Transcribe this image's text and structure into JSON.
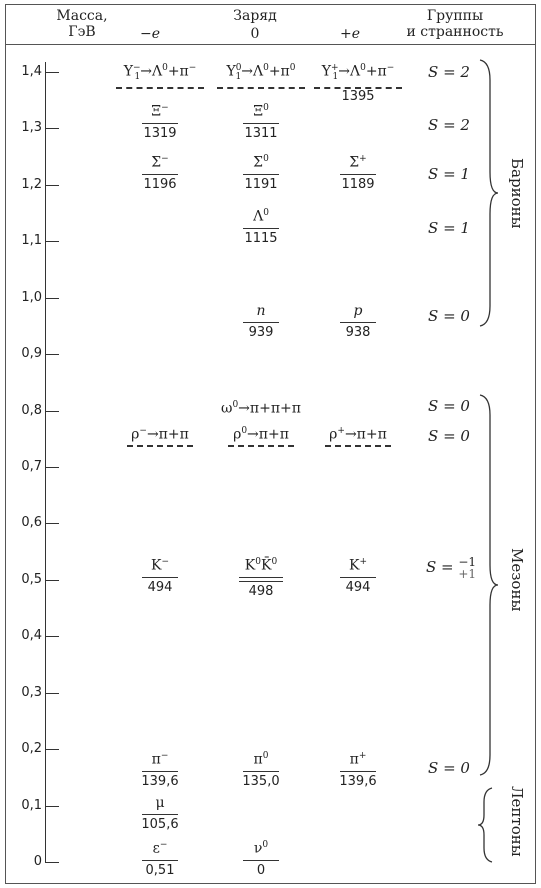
{
  "header": {
    "mass": "Масса,\nГэВ",
    "charge": "Заряд",
    "neg": "−e",
    "zero": "0",
    "pos": "+e",
    "groups": "Группы\nи странность"
  },
  "axis": [
    "1,4",
    "1,3",
    "1,2",
    "1,1",
    "1,0",
    "0,9",
    "0,8",
    "0,7",
    "0,6",
    "0,5",
    "0,4",
    "0,3",
    "0,2",
    "0,1",
    "0"
  ],
  "chart_data": {
    "type": "table",
    "ylabel": "Масса, ГэВ",
    "ylim": [
      0,
      1.4
    ],
    "columns": [
      "−e",
      "0",
      "+e"
    ],
    "particles": [
      {
        "neg": "Y1−→Λ0+π−",
        "zero": "Y10→Λ0+π0",
        "pos": "Y1+→Λ0+π−",
        "pos_mass": "1395"
      },
      {
        "neg": "Ξ−",
        "neg_mass": "1319",
        "zero": "Ξ0",
        "zero_mass": "1311"
      },
      {
        "neg": "Σ−",
        "neg_mass": "1196",
        "zero": "Σ0",
        "zero_mass": "1191",
        "pos": "Σ+",
        "pos_mass": "1189"
      },
      {
        "zero": "Λ0",
        "zero_mass": "1115"
      },
      {
        "zero": "n",
        "zero_mass": "939",
        "pos": "p",
        "pos_mass": "938"
      },
      {
        "zero": "ω0→π+π+π"
      },
      {
        "neg": "ρ−→π+π",
        "zero": "ρ0→π+π",
        "pos": "ρ+→π+π"
      },
      {
        "neg": "K−",
        "neg_mass": "494",
        "zero": "K0K̄0",
        "zero_mass": "498",
        "pos": "K+",
        "pos_mass": "494"
      },
      {
        "neg": "π−",
        "neg_mass": "139,6",
        "zero": "π0",
        "zero_mass": "135,0",
        "pos": "π+",
        "pos_mass": "139,6"
      },
      {
        "neg": "μ",
        "neg_mass": "105,6"
      },
      {
        "neg": "ε",
        "neg_mass": "0,51",
        "zero": "ν0",
        "zero_mass": "0"
      }
    ],
    "strangeness": [
      "S = 2",
      "S = 2",
      "S = 1",
      "S = 1",
      "S = 0",
      "S = 0",
      "S = 0",
      "S = −1 / +1",
      "S = 0"
    ],
    "groups": [
      "Барионы",
      "Мезоны",
      "Лептоны"
    ]
  },
  "cells": {
    "y_neg": {
      "base": "Y",
      "sub": "1",
      "sup": "−",
      "rest": "→Λ",
      "rsup": "0",
      "tail": "+π",
      "tsup": "−"
    },
    "y_zero": {
      "base": "Y",
      "sub": "1",
      "sup": "0",
      "rest": "→Λ",
      "rsup": "0",
      "tail": "+π",
      "tsup": "0"
    },
    "y_pos": {
      "base": "Y",
      "sub": "1",
      "sup": "+",
      "rest": "→Λ",
      "rsup": "0",
      "tail": "+π",
      "tsup": "−",
      "mass": "1395"
    },
    "xi_neg": {
      "base": "Ξ",
      "sup": "−",
      "mass": "1319"
    },
    "xi_zero": {
      "base": "Ξ",
      "sup": "0",
      "mass": "1311"
    },
    "sigma_neg": {
      "base": "Σ",
      "sup": "−",
      "mass": "1196"
    },
    "sigma_zero": {
      "base": "Σ",
      "sup": "0",
      "mass": "1191"
    },
    "sigma_pos": {
      "base": "Σ",
      "sup": "+",
      "mass": "1189"
    },
    "lambda_zero": {
      "base": "Λ",
      "sup": "0",
      "mass": "1115"
    },
    "n": {
      "base": "n",
      "mass": "939"
    },
    "p": {
      "base": "p",
      "mass": "938"
    },
    "omega": {
      "base": "ω",
      "sup": "0",
      "rest": "→π+π+π"
    },
    "rho_neg": {
      "base": "ρ",
      "sup": "−",
      "rest": "→π+π"
    },
    "rho_zero": {
      "base": "ρ",
      "sup": "0",
      "rest": "→π+π"
    },
    "rho_pos": {
      "base": "ρ",
      "sup": "+",
      "rest": "→π+π"
    },
    "k_neg": {
      "base": "K",
      "sup": "−",
      "mass": "494"
    },
    "k_zero": {
      "base": "K",
      "sup": "0",
      "base2": "K̄",
      "sup2": "0",
      "mass": "498"
    },
    "k_pos": {
      "base": "K",
      "sup": "+",
      "mass": "494"
    },
    "pi_neg": {
      "base": "π",
      "sup": "−",
      "mass": "139,6"
    },
    "pi_zero": {
      "base": "π",
      "sup": "0",
      "mass": "135,0"
    },
    "pi_pos": {
      "base": "π",
      "sup": "+",
      "mass": "139,6"
    },
    "mu": {
      "base": "μ",
      "mass": "105,6"
    },
    "e": {
      "base": "ε",
      "sup": "−",
      "mass": "0,51"
    },
    "nu": {
      "base": "ν",
      "sup": "0",
      "mass": "0"
    }
  },
  "strangeness": {
    "s1": "S = 2",
    "s2": "S = 2",
    "s3": "S = 1",
    "s4": "S = 1",
    "s5": "S = 0",
    "s6": "S = 0",
    "s7": "S = 0",
    "s8_prefix": "S =",
    "s8_top": "−1",
    "s8_bottom": "+1",
    "s9": "S = 0"
  },
  "groups": {
    "baryons": "Барионы",
    "mesons": "Мезоны",
    "leptons": "Лептоны"
  }
}
